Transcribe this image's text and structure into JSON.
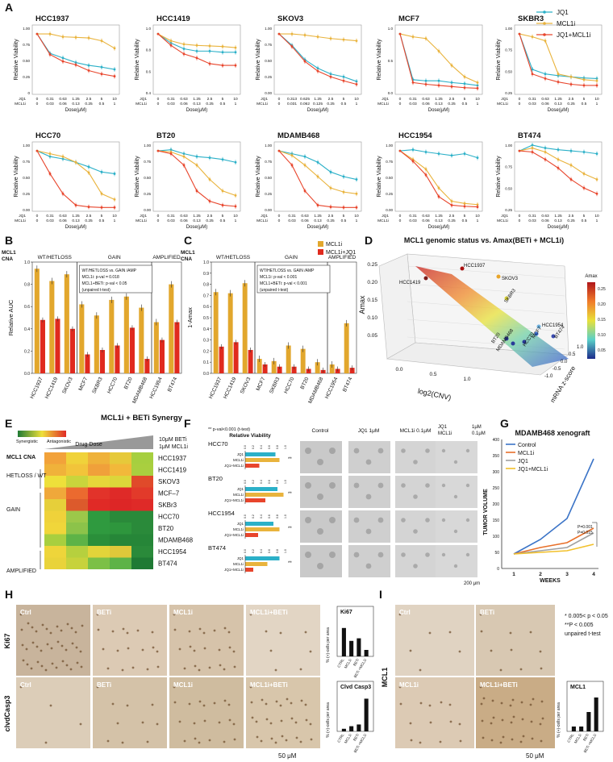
{
  "colors": {
    "jq1": "#2bb0c8",
    "mcl1i": "#e9b33c",
    "combo": "#e8452c",
    "bar_gold": "#e2a72d",
    "bar_red": "#e02a1e"
  },
  "panels": {
    "A": "A",
    "B": "B",
    "C": "C",
    "D": "D",
    "E": "E",
    "F": "F",
    "G": "G",
    "H": "H",
    "I": "I"
  },
  "panelA": {
    "legend": [
      "JQ1",
      "MCL1i",
      "JQ1+MCL1i"
    ],
    "xlabel": "Dose(μM)",
    "ylabel": "Relative Viability",
    "row_labels": [
      "JQ1",
      "MCL1i"
    ],
    "charts": [
      {
        "title": "HCC1937",
        "jq1": [
          "0",
          "0.31",
          "0.63",
          "1.25",
          "2.5",
          "5",
          "10"
        ],
        "mcl": [
          "0",
          "0.03",
          "0.06",
          "0.13",
          "0.25",
          "0.5",
          "1"
        ],
        "yt": [
          "0",
          "0.25",
          "0.50",
          "0.75",
          "1.00"
        ],
        "y": [
          [
            1,
            0.66,
            0.58,
            0.5,
            0.45,
            0.42,
            0.38
          ],
          [
            1,
            1,
            0.95,
            0.94,
            0.93,
            0.88,
            0.75
          ],
          [
            1,
            0.64,
            0.52,
            0.46,
            0.36,
            0.3,
            0.26
          ]
        ]
      },
      {
        "title": "HCC1419",
        "jq1": [
          "0",
          "0.31",
          "0.63",
          "1.25",
          "2.5",
          "5",
          "10"
        ],
        "mcl": [
          "0",
          "0.03",
          "0.06",
          "0.13",
          "0.25",
          "0.5",
          "1"
        ],
        "yt": [
          "0.4",
          "0.6",
          "0.8",
          "1.0"
        ],
        "y": [
          [
            1,
            0.84,
            0.74,
            0.7,
            0.7,
            0.68,
            0.68
          ],
          [
            1,
            0.88,
            0.82,
            0.8,
            0.79,
            0.78,
            0.76
          ],
          [
            1,
            0.8,
            0.65,
            0.58,
            0.48,
            0.45,
            0.45
          ]
        ]
      },
      {
        "title": "SKOV3",
        "jq1": [
          "0",
          "0.313",
          "0.625",
          "1.25",
          "2.5",
          "5",
          "10"
        ],
        "mcl": [
          "0",
          "0.031",
          "0.062",
          "0.125",
          "0.25",
          "0.5",
          "1"
        ],
        "yt": [
          "0.00",
          "0.25",
          "0.50",
          "0.75",
          "1.00"
        ],
        "y": [
          [
            1,
            0.8,
            0.55,
            0.4,
            0.3,
            0.25,
            0.17
          ],
          [
            1,
            1,
            0.98,
            0.95,
            0.92,
            0.9,
            0.88
          ],
          [
            1,
            0.78,
            0.52,
            0.35,
            0.25,
            0.18,
            0.12
          ]
        ]
      },
      {
        "title": "MCF7",
        "jq1": [
          "0",
          "0.31",
          "0.63",
          "1.25",
          "2.5",
          "5",
          "10"
        ],
        "mcl": [
          "0",
          "0.03",
          "0.06",
          "0.13",
          "0.25",
          "0.5",
          "1"
        ],
        "yt": [
          "0.0",
          "0.5",
          "1.0"
        ],
        "y": [
          [
            1,
            0.2,
            0.18,
            0.18,
            0.15,
            0.13,
            0.1
          ],
          [
            1,
            0.95,
            0.92,
            0.7,
            0.45,
            0.25,
            0.15
          ],
          [
            1,
            0.15,
            0.12,
            0.1,
            0.08,
            0.06,
            0.05
          ]
        ]
      },
      {
        "title": "SKBR3",
        "jq1": [
          "0",
          "0.31",
          "0.63",
          "1.25",
          "2.5",
          "5",
          "10"
        ],
        "mcl": [
          "0",
          "0.03",
          "0.06",
          "0.13",
          "0.25",
          "0.5",
          "1"
        ],
        "yt": [
          "0.25",
          "0.50",
          "0.75",
          "1.00"
        ],
        "y": [
          [
            1,
            0.38,
            0.3,
            0.27,
            0.25,
            0.23,
            0.22
          ],
          [
            1,
            0.95,
            0.88,
            0.3,
            0.25,
            0.2,
            0.18
          ],
          [
            1,
            0.3,
            0.22,
            0.16,
            0.12,
            0.1,
            0.1
          ]
        ]
      },
      {
        "title": "HCC70",
        "jq1": [
          "0",
          "0.31",
          "0.63",
          "1.25",
          "2.5",
          "5",
          "10"
        ],
        "mcl": [
          "0",
          "0.03",
          "0.06",
          "0.13",
          "0.25",
          "0.5",
          "1"
        ],
        "yt": [
          "0.00",
          "0.25",
          "0.50",
          "0.75",
          "1.00"
        ],
        "y": [
          [
            1,
            0.9,
            0.86,
            0.8,
            0.72,
            0.63,
            0.6
          ],
          [
            1,
            0.95,
            0.9,
            0.8,
            0.62,
            0.25,
            0.15
          ],
          [
            1,
            0.6,
            0.25,
            0.05,
            0.02,
            0.01,
            0.01
          ]
        ]
      },
      {
        "title": "BT20",
        "jq1": [
          "0",
          "0.31",
          "0.63",
          "1.25",
          "2.5",
          "5",
          "10"
        ],
        "mcl": [
          "0",
          "0.03",
          "0.06",
          "0.13",
          "0.25",
          "0.5",
          "1"
        ],
        "yt": [
          "0.00",
          "0.25",
          "0.50",
          "0.75",
          "1.00"
        ],
        "y": [
          [
            1,
            1.02,
            0.95,
            0.9,
            0.88,
            0.85,
            0.8
          ],
          [
            1,
            0.98,
            0.9,
            0.75,
            0.5,
            0.3,
            0.22
          ],
          [
            1,
            0.95,
            0.75,
            0.3,
            0.12,
            0.05,
            0.03
          ]
        ]
      },
      {
        "title": "MDAMB468",
        "jq1": [
          "0",
          "0.31",
          "0.63",
          "1.25",
          "2.5",
          "5",
          "10"
        ],
        "mcl": [
          "0",
          "0.03",
          "0.06",
          "0.13",
          "0.25",
          "0.5",
          "1"
        ],
        "yt": [
          "0.00",
          "0.25",
          "0.50",
          "0.75",
          "1.00"
        ],
        "y": [
          [
            1,
            0.95,
            0.9,
            0.8,
            0.63,
            0.55,
            0.5
          ],
          [
            1,
            0.92,
            0.75,
            0.55,
            0.35,
            0.28,
            0.25
          ],
          [
            1,
            0.75,
            0.3,
            0.05,
            0.02,
            0.01,
            0.01
          ]
        ]
      },
      {
        "title": "HCC1954",
        "jq1": [
          "0",
          "0.31",
          "0.63",
          "1.25",
          "2.5",
          "5",
          "10"
        ],
        "mcl": [
          "0",
          "0.03",
          "0.06",
          "0.13",
          "0.25",
          "0.5",
          "1"
        ],
        "yt": [
          "0.00",
          "0.25",
          "0.50",
          "0.75",
          "1.00"
        ],
        "y": [
          [
            1,
            1.02,
            0.98,
            0.95,
            0.92,
            0.95,
            0.88
          ],
          [
            1,
            0.85,
            0.68,
            0.35,
            0.12,
            0.08,
            0.06
          ],
          [
            1,
            0.82,
            0.58,
            0.2,
            0.05,
            0.03,
            0.02
          ]
        ]
      },
      {
        "title": "BT474",
        "jq1": [
          "0",
          "0.31",
          "0.63",
          "1.25",
          "2.5",
          "5",
          "10"
        ],
        "mcl": [
          "0",
          "0.03",
          "0.06",
          "0.13",
          "0.25",
          "0.5",
          "1"
        ],
        "yt": [
          "0.25",
          "0.50",
          "0.75",
          "1.00"
        ],
        "y": [
          [
            1,
            1.1,
            1.05,
            1.02,
            1.0,
            0.98,
            0.95
          ],
          [
            1,
            1.05,
            0.98,
            0.85,
            0.75,
            0.6,
            0.5
          ],
          [
            1,
            0.98,
            0.85,
            0.7,
            0.5,
            0.35,
            0.25
          ]
        ]
      }
    ]
  },
  "panelB": {
    "header": [
      "MCL1",
      "CNA"
    ],
    "groups": [
      "WT/HETLOSS",
      "GAIN",
      "AMPLIFIED"
    ],
    "stats": [
      "WT/HETLOSS vs. GAIN /AMP",
      "MCL1i: p-val = 0.018",
      "MCL1+BETi: p-val < 0.05",
      "(unpaired t-test)"
    ],
    "ylabel": "Relative AUC",
    "yt": [
      "0.0",
      "0.2",
      "0.4",
      "0.6",
      "0.8",
      "1.0"
    ],
    "cells": [
      "HCC1937",
      "HCC1419",
      "SKOV3",
      "MCF7",
      "SKBR3",
      "HCC70",
      "BT20",
      "MDAMB468",
      "HCC1954",
      "BT474"
    ],
    "gold": [
      0.94,
      0.83,
      0.89,
      0.62,
      0.52,
      0.66,
      0.69,
      0.59,
      0.46,
      0.8
    ],
    "red": [
      0.48,
      0.49,
      0.4,
      0.17,
      0.21,
      0.25,
      0.41,
      0.13,
      0.3,
      0.46
    ]
  },
  "panelC": {
    "header": [
      "MCL1",
      "CNA"
    ],
    "groups": [
      "WT/HETLOSS",
      "GAIN",
      "AMPLIFIED"
    ],
    "stats": [
      "WT/HETLOSS vs. GAIN /AMP",
      "MCL1i: p-val < 0.001",
      "MCL1+BETi: p-val < 0.001",
      "(unpaired t-test)"
    ],
    "legend": [
      "MCL1i",
      "MCL1i+JQ1"
    ],
    "ylabel": "1-Amax",
    "yt": [
      "0.0",
      "0.1",
      "0.2",
      "0.3",
      "0.4",
      "0.5",
      "0.6",
      "0.7",
      "0.8",
      "0.9",
      "1.0"
    ],
    "cells": [
      "HCC1937",
      "HCC1419",
      "SKOV3",
      "MCF7",
      "SKBR3",
      "HCC70",
      "BT20",
      "MDAMB468",
      "HCC1954",
      "BT474"
    ],
    "gold": [
      0.73,
      0.72,
      0.81,
      0.13,
      0.11,
      0.25,
      0.22,
      0.1,
      0.08,
      0.45
    ],
    "red": [
      0.24,
      0.28,
      0.21,
      0.08,
      0.06,
      0.06,
      0.04,
      0.03,
      0.04,
      0.05
    ]
  },
  "panelD": {
    "title": "MCL1 genomic status vs. Amax(BETi + MCL1i)",
    "zlabel": "Amax",
    "xlabel": "log2(CNV)",
    "ylabel": "mRNA z-score",
    "zt": [
      "0.05",
      "0.10",
      "0.15",
      "0.20",
      "0.25"
    ],
    "xt": [
      "0.0",
      "0.5",
      "1.0"
    ],
    "yt": [
      "-1.0",
      "-0.5",
      "0.0",
      "0.5",
      "1.0"
    ],
    "cbar_title": "Amax",
    "cbar_ticks": [
      "0.25",
      "0.20",
      "0.15",
      "0.10",
      "0.05"
    ],
    "points": [
      "HCC1419",
      "HCC1937",
      "SKOV3",
      "SKBR3",
      "HCC1954",
      "MCF7",
      "BT474",
      "BT20",
      "MDAMB468",
      "HCC70"
    ]
  },
  "panelE": {
    "title": "MCL1i + BETi Synergy",
    "legend": [
      "Synergistic",
      "Antagonistic"
    ],
    "dose_label": "Drug Dose",
    "dose_top": "10μM BETi",
    "dose_bot": "1μM MCL1i",
    "header": "MCL1 CNA",
    "groups": [
      "HETLOSS / WT",
      "GAIN",
      "AMPLIFIED"
    ],
    "rows": [
      "HCC1937",
      "HCC1419",
      "SKOV3",
      "MCF–7",
      "SKBr3",
      "HCC70",
      "BT20",
      "MDAMB468",
      "HCC1954",
      "BT474"
    ],
    "grid": [
      [
        "#f2a23a",
        "#f0d23a",
        "#efb23a",
        "#e6c93a",
        "#a6cf3f"
      ],
      [
        "#f0b23a",
        "#f2c43a",
        "#f0a03a",
        "#f2b83a",
        "#a9cf3f"
      ],
      [
        "#eee03a",
        "#c9d53c",
        "#e6d63a",
        "#dcd63a",
        "#e04a2a"
      ],
      [
        "#f0a83a",
        "#eb6a2f",
        "#e2332a",
        "#df2a28",
        "#e23a2a"
      ],
      [
        "#e6cf3a",
        "#dc5a2c",
        "#e02a26",
        "#dd2626",
        "#df2a28"
      ],
      [
        "#efd23a",
        "#9cc84a",
        "#2f9a3f",
        "#2a8a3a",
        "#2a8a3a"
      ],
      [
        "#f0d63a",
        "#8cc34a",
        "#2f9a3f",
        "#2e963d",
        "#2a8a3a"
      ],
      [
        "#a8cf3f",
        "#5db347",
        "#2a8f3a",
        "#268638",
        "#268638"
      ],
      [
        "#eed53a",
        "#b6d03e",
        "#e2d43a",
        "#dfc83a",
        "#2a8a3a"
      ],
      [
        "#e9d33a",
        "#c7d23c",
        "#7cc046",
        "#5db347",
        "#1f7a34"
      ]
    ]
  },
  "panelF": {
    "note": "** p-val<0.001 (t-test)",
    "col_title": "Relative Viability",
    "cols": [
      "Control",
      "JQ1 1μM",
      "MCL1i 0.1μM",
      "JQ1\nMCL1i",
      "1μM\n0.1μM"
    ],
    "col_labels": [
      "Control",
      "JQ1 1μM",
      "MCL1i 0.1μM",
      "JQ1 MCL1i",
      "1μM 0.1μM"
    ],
    "rows": [
      "HCC70",
      "BT20",
      "HCC1954",
      "BT474"
    ],
    "row_items": [
      "JQ1",
      "MCL1i",
      "JQ1+MCL1i"
    ],
    "axis": [
      "0.0",
      "0.2",
      "0.4",
      "0.6",
      "0.8",
      "1.0"
    ],
    "scale": "200 μm",
    "vals": [
      [
        0.75,
        0.85,
        0.35
      ],
      [
        0.8,
        0.95,
        0.5
      ],
      [
        0.7,
        0.85,
        0.32
      ],
      [
        0.85,
        0.55,
        0.2
      ]
    ]
  },
  "panelG": {
    "title": "MDAMB468 xenograft",
    "ylabel": "TUMOR VOLUME",
    "xlabel": "WEEKS",
    "legend": [
      "Control",
      "MCL1i",
      "JQ1",
      "JQ1+MCL1i"
    ],
    "colors": [
      "#3b74c7",
      "#e8702a",
      "#a0a0a0",
      "#f2c02a"
    ],
    "x": [
      "1",
      "2",
      "3",
      "4"
    ],
    "yt": [
      "0",
      "50",
      "100",
      "150",
      "200",
      "250",
      "300",
      "350",
      "400"
    ],
    "series": [
      [
        45,
        90,
        155,
        340
      ],
      [
        45,
        65,
        80,
        125
      ],
      [
        45,
        55,
        65,
        110
      ],
      [
        45,
        50,
        55,
        75
      ]
    ],
    "pvals": [
      "P=0.001",
      "P=0.015"
    ]
  },
  "panelH": {
    "row_labels": [
      "Ki67",
      "clvdCasp3"
    ],
    "cols": [
      "Ctrl",
      "BETi",
      "MCL1i",
      "MCL1i+BETi"
    ],
    "row2_cols": [
      "Ctrl",
      "BETi",
      "MCL1i",
      "MCL1i+BETi"
    ],
    "scale": "50 μM",
    "ylabel": "% (+)-cells per area",
    "chart1": {
      "title": "Ki67",
      "cats": [
        "CTRL",
        "MCL1i",
        "BETi",
        "BETi +MCL1i"
      ],
      "values": [
        22,
        12,
        14,
        5
      ],
      "ymax": 30
    },
    "chart2": {
      "title": "Clvd Casp3",
      "cats": [
        "CTRL",
        "MCL1i",
        "BETi",
        "BETi +MCL1i"
      ],
      "values": [
        3,
        6,
        8,
        38
      ],
      "ymax": 45
    }
  },
  "panelI": {
    "row_label": "MCL1",
    "cols": [
      "Ctrl",
      "BETi",
      "MCL1i",
      "MCL1i+BETi"
    ],
    "note": [
      "* 0.005< p < 0.05",
      "**P < 0.005",
      "unpaired t-test"
    ],
    "scale": "50 μM",
    "ylabel": "% (+)-cells per area",
    "chart": {
      "title": "MCL1",
      "cats": [
        "CTRL",
        "MCL1i",
        "BETi",
        "BETi +MCL1i"
      ],
      "values": [
        5,
        5,
        20,
        35
      ],
      "ymax": 40
    }
  }
}
